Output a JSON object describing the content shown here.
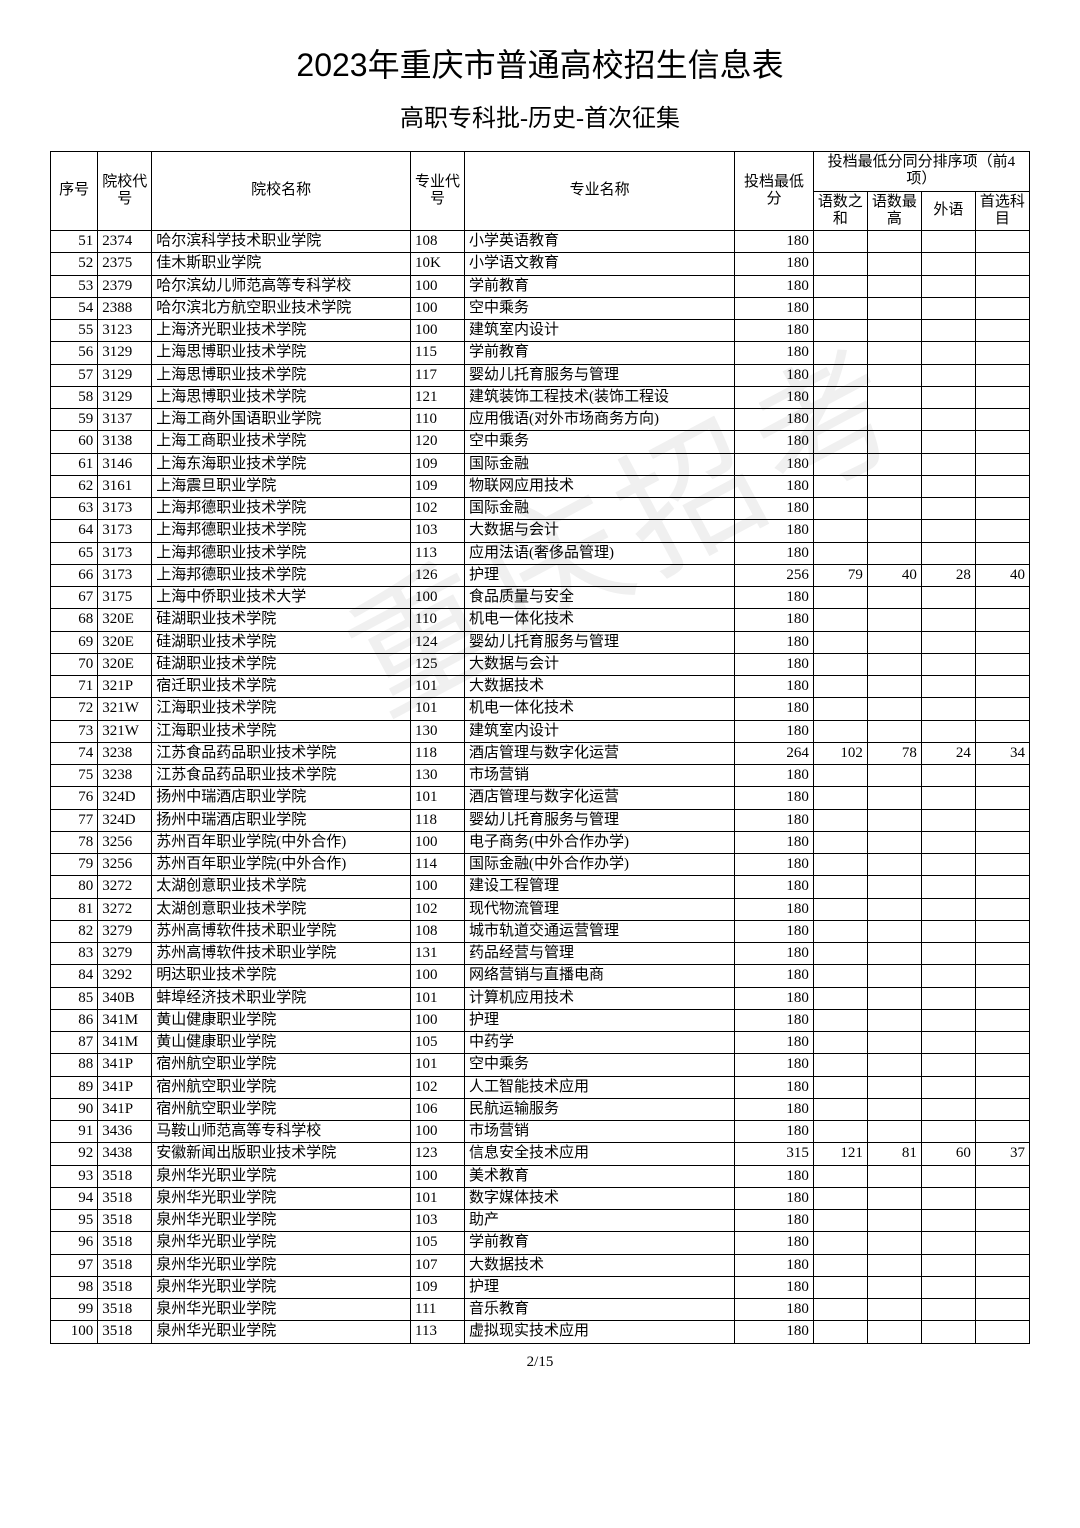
{
  "title": "2023年重庆市普通高校招生信息表",
  "subtitle": "高职专科批-历史-首次征集",
  "watermark": "重庆招考",
  "footer": "2/15",
  "headers": {
    "seq": "序号",
    "school_code": "院校代号",
    "school_name": "院校名称",
    "major_code": "专业代号",
    "major_name": "专业名称",
    "min_score": "投档最低分",
    "tiebreak_group": "投档最低分同分排序项（前4项）",
    "t1": "语数之和",
    "t2": "语数最高",
    "t3": "外语",
    "t4": "首选科目"
  },
  "rows": [
    {
      "seq": 51,
      "sc": "2374",
      "sn": "哈尔滨科学技术职业学院",
      "mc": "108",
      "mn": "小学英语教育",
      "min": 180,
      "s1": "",
      "s2": "",
      "s3": "",
      "s4": ""
    },
    {
      "seq": 52,
      "sc": "2375",
      "sn": "佳木斯职业学院",
      "mc": "10K",
      "mn": "小学语文教育",
      "min": 180,
      "s1": "",
      "s2": "",
      "s3": "",
      "s4": ""
    },
    {
      "seq": 53,
      "sc": "2379",
      "sn": "哈尔滨幼儿师范高等专科学校",
      "mc": "100",
      "mn": "学前教育",
      "min": 180,
      "s1": "",
      "s2": "",
      "s3": "",
      "s4": ""
    },
    {
      "seq": 54,
      "sc": "2388",
      "sn": "哈尔滨北方航空职业技术学院",
      "mc": "100",
      "mn": "空中乘务",
      "min": 180,
      "s1": "",
      "s2": "",
      "s3": "",
      "s4": ""
    },
    {
      "seq": 55,
      "sc": "3123",
      "sn": "上海济光职业技术学院",
      "mc": "100",
      "mn": "建筑室内设计",
      "min": 180,
      "s1": "",
      "s2": "",
      "s3": "",
      "s4": ""
    },
    {
      "seq": 56,
      "sc": "3129",
      "sn": "上海思博职业技术学院",
      "mc": "115",
      "mn": "学前教育",
      "min": 180,
      "s1": "",
      "s2": "",
      "s3": "",
      "s4": ""
    },
    {
      "seq": 57,
      "sc": "3129",
      "sn": "上海思博职业技术学院",
      "mc": "117",
      "mn": "婴幼儿托育服务与管理",
      "min": 180,
      "s1": "",
      "s2": "",
      "s3": "",
      "s4": ""
    },
    {
      "seq": 58,
      "sc": "3129",
      "sn": "上海思博职业技术学院",
      "mc": "121",
      "mn": "建筑装饰工程技术(装饰工程设",
      "min": 180,
      "s1": "",
      "s2": "",
      "s3": "",
      "s4": ""
    },
    {
      "seq": 59,
      "sc": "3137",
      "sn": "上海工商外国语职业学院",
      "mc": "110",
      "mn": "应用俄语(对外市场商务方向)",
      "min": 180,
      "s1": "",
      "s2": "",
      "s3": "",
      "s4": ""
    },
    {
      "seq": 60,
      "sc": "3138",
      "sn": "上海工商职业技术学院",
      "mc": "120",
      "mn": "空中乘务",
      "min": 180,
      "s1": "",
      "s2": "",
      "s3": "",
      "s4": ""
    },
    {
      "seq": 61,
      "sc": "3146",
      "sn": "上海东海职业技术学院",
      "mc": "109",
      "mn": "国际金融",
      "min": 180,
      "s1": "",
      "s2": "",
      "s3": "",
      "s4": ""
    },
    {
      "seq": 62,
      "sc": "3161",
      "sn": "上海震旦职业学院",
      "mc": "109",
      "mn": "物联网应用技术",
      "min": 180,
      "s1": "",
      "s2": "",
      "s3": "",
      "s4": ""
    },
    {
      "seq": 63,
      "sc": "3173",
      "sn": "上海邦德职业技术学院",
      "mc": "102",
      "mn": "国际金融",
      "min": 180,
      "s1": "",
      "s2": "",
      "s3": "",
      "s4": ""
    },
    {
      "seq": 64,
      "sc": "3173",
      "sn": "上海邦德职业技术学院",
      "mc": "103",
      "mn": "大数据与会计",
      "min": 180,
      "s1": "",
      "s2": "",
      "s3": "",
      "s4": ""
    },
    {
      "seq": 65,
      "sc": "3173",
      "sn": "上海邦德职业技术学院",
      "mc": "113",
      "mn": "应用法语(奢侈品管理)",
      "min": 180,
      "s1": "",
      "s2": "",
      "s3": "",
      "s4": ""
    },
    {
      "seq": 66,
      "sc": "3173",
      "sn": "上海邦德职业技术学院",
      "mc": "126",
      "mn": "护理",
      "min": 256,
      "s1": 79,
      "s2": 40,
      "s3": 28,
      "s4": 40
    },
    {
      "seq": 67,
      "sc": "3175",
      "sn": "上海中侨职业技术大学",
      "mc": "100",
      "mn": "食品质量与安全",
      "min": 180,
      "s1": "",
      "s2": "",
      "s3": "",
      "s4": ""
    },
    {
      "seq": 68,
      "sc": "320E",
      "sn": "硅湖职业技术学院",
      "mc": "110",
      "mn": "机电一体化技术",
      "min": 180,
      "s1": "",
      "s2": "",
      "s3": "",
      "s4": ""
    },
    {
      "seq": 69,
      "sc": "320E",
      "sn": "硅湖职业技术学院",
      "mc": "124",
      "mn": "婴幼儿托育服务与管理",
      "min": 180,
      "s1": "",
      "s2": "",
      "s3": "",
      "s4": ""
    },
    {
      "seq": 70,
      "sc": "320E",
      "sn": "硅湖职业技术学院",
      "mc": "125",
      "mn": "大数据与会计",
      "min": 180,
      "s1": "",
      "s2": "",
      "s3": "",
      "s4": ""
    },
    {
      "seq": 71,
      "sc": "321P",
      "sn": "宿迁职业技术学院",
      "mc": "101",
      "mn": "大数据技术",
      "min": 180,
      "s1": "",
      "s2": "",
      "s3": "",
      "s4": ""
    },
    {
      "seq": 72,
      "sc": "321W",
      "sn": "江海职业技术学院",
      "mc": "101",
      "mn": "机电一体化技术",
      "min": 180,
      "s1": "",
      "s2": "",
      "s3": "",
      "s4": ""
    },
    {
      "seq": 73,
      "sc": "321W",
      "sn": "江海职业技术学院",
      "mc": "130",
      "mn": "建筑室内设计",
      "min": 180,
      "s1": "",
      "s2": "",
      "s3": "",
      "s4": ""
    },
    {
      "seq": 74,
      "sc": "3238",
      "sn": "江苏食品药品职业技术学院",
      "mc": "118",
      "mn": "酒店管理与数字化运营",
      "min": 264,
      "s1": 102,
      "s2": 78,
      "s3": 24,
      "s4": 34
    },
    {
      "seq": 75,
      "sc": "3238",
      "sn": "江苏食品药品职业技术学院",
      "mc": "130",
      "mn": "市场营销",
      "min": 180,
      "s1": "",
      "s2": "",
      "s3": "",
      "s4": ""
    },
    {
      "seq": 76,
      "sc": "324D",
      "sn": "扬州中瑞酒店职业学院",
      "mc": "101",
      "mn": "酒店管理与数字化运营",
      "min": 180,
      "s1": "",
      "s2": "",
      "s3": "",
      "s4": ""
    },
    {
      "seq": 77,
      "sc": "324D",
      "sn": "扬州中瑞酒店职业学院",
      "mc": "118",
      "mn": "婴幼儿托育服务与管理",
      "min": 180,
      "s1": "",
      "s2": "",
      "s3": "",
      "s4": ""
    },
    {
      "seq": 78,
      "sc": "3256",
      "sn": "苏州百年职业学院(中外合作)",
      "mc": "100",
      "mn": "电子商务(中外合作办学)",
      "min": 180,
      "s1": "",
      "s2": "",
      "s3": "",
      "s4": ""
    },
    {
      "seq": 79,
      "sc": "3256",
      "sn": "苏州百年职业学院(中外合作)",
      "mc": "114",
      "mn": "国际金融(中外合作办学)",
      "min": 180,
      "s1": "",
      "s2": "",
      "s3": "",
      "s4": ""
    },
    {
      "seq": 80,
      "sc": "3272",
      "sn": "太湖创意职业技术学院",
      "mc": "100",
      "mn": "建设工程管理",
      "min": 180,
      "s1": "",
      "s2": "",
      "s3": "",
      "s4": ""
    },
    {
      "seq": 81,
      "sc": "3272",
      "sn": "太湖创意职业技术学院",
      "mc": "102",
      "mn": "现代物流管理",
      "min": 180,
      "s1": "",
      "s2": "",
      "s3": "",
      "s4": ""
    },
    {
      "seq": 82,
      "sc": "3279",
      "sn": "苏州高博软件技术职业学院",
      "mc": "108",
      "mn": "城市轨道交通运营管理",
      "min": 180,
      "s1": "",
      "s2": "",
      "s3": "",
      "s4": ""
    },
    {
      "seq": 83,
      "sc": "3279",
      "sn": "苏州高博软件技术职业学院",
      "mc": "131",
      "mn": "药品经营与管理",
      "min": 180,
      "s1": "",
      "s2": "",
      "s3": "",
      "s4": ""
    },
    {
      "seq": 84,
      "sc": "3292",
      "sn": "明达职业技术学院",
      "mc": "100",
      "mn": "网络营销与直播电商",
      "min": 180,
      "s1": "",
      "s2": "",
      "s3": "",
      "s4": ""
    },
    {
      "seq": 85,
      "sc": "340B",
      "sn": "蚌埠经济技术职业学院",
      "mc": "101",
      "mn": "计算机应用技术",
      "min": 180,
      "s1": "",
      "s2": "",
      "s3": "",
      "s4": ""
    },
    {
      "seq": 86,
      "sc": "341M",
      "sn": "黄山健康职业学院",
      "mc": "100",
      "mn": "护理",
      "min": 180,
      "s1": "",
      "s2": "",
      "s3": "",
      "s4": ""
    },
    {
      "seq": 87,
      "sc": "341M",
      "sn": "黄山健康职业学院",
      "mc": "105",
      "mn": "中药学",
      "min": 180,
      "s1": "",
      "s2": "",
      "s3": "",
      "s4": ""
    },
    {
      "seq": 88,
      "sc": "341P",
      "sn": "宿州航空职业学院",
      "mc": "101",
      "mn": "空中乘务",
      "min": 180,
      "s1": "",
      "s2": "",
      "s3": "",
      "s4": ""
    },
    {
      "seq": 89,
      "sc": "341P",
      "sn": "宿州航空职业学院",
      "mc": "102",
      "mn": "人工智能技术应用",
      "min": 180,
      "s1": "",
      "s2": "",
      "s3": "",
      "s4": ""
    },
    {
      "seq": 90,
      "sc": "341P",
      "sn": "宿州航空职业学院",
      "mc": "106",
      "mn": "民航运输服务",
      "min": 180,
      "s1": "",
      "s2": "",
      "s3": "",
      "s4": ""
    },
    {
      "seq": 91,
      "sc": "3436",
      "sn": "马鞍山师范高等专科学校",
      "mc": "100",
      "mn": "市场营销",
      "min": 180,
      "s1": "",
      "s2": "",
      "s3": "",
      "s4": ""
    },
    {
      "seq": 92,
      "sc": "3438",
      "sn": "安徽新闻出版职业技术学院",
      "mc": "123",
      "mn": "信息安全技术应用",
      "min": 315,
      "s1": 121,
      "s2": 81,
      "s3": 60,
      "s4": 37
    },
    {
      "seq": 93,
      "sc": "3518",
      "sn": "泉州华光职业学院",
      "mc": "100",
      "mn": "美术教育",
      "min": 180,
      "s1": "",
      "s2": "",
      "s3": "",
      "s4": ""
    },
    {
      "seq": 94,
      "sc": "3518",
      "sn": "泉州华光职业学院",
      "mc": "101",
      "mn": "数字媒体技术",
      "min": 180,
      "s1": "",
      "s2": "",
      "s3": "",
      "s4": ""
    },
    {
      "seq": 95,
      "sc": "3518",
      "sn": "泉州华光职业学院",
      "mc": "103",
      "mn": "助产",
      "min": 180,
      "s1": "",
      "s2": "",
      "s3": "",
      "s4": ""
    },
    {
      "seq": 96,
      "sc": "3518",
      "sn": "泉州华光职业学院",
      "mc": "105",
      "mn": "学前教育",
      "min": 180,
      "s1": "",
      "s2": "",
      "s3": "",
      "s4": ""
    },
    {
      "seq": 97,
      "sc": "3518",
      "sn": "泉州华光职业学院",
      "mc": "107",
      "mn": "大数据技术",
      "min": 180,
      "s1": "",
      "s2": "",
      "s3": "",
      "s4": ""
    },
    {
      "seq": 98,
      "sc": "3518",
      "sn": "泉州华光职业学院",
      "mc": "109",
      "mn": "护理",
      "min": 180,
      "s1": "",
      "s2": "",
      "s3": "",
      "s4": ""
    },
    {
      "seq": 99,
      "sc": "3518",
      "sn": "泉州华光职业学院",
      "mc": "111",
      "mn": "音乐教育",
      "min": 180,
      "s1": "",
      "s2": "",
      "s3": "",
      "s4": ""
    },
    {
      "seq": 100,
      "sc": "3518",
      "sn": "泉州华光职业学院",
      "mc": "113",
      "mn": "虚拟现实技术应用",
      "min": 180,
      "s1": "",
      "s2": "",
      "s3": "",
      "s4": ""
    }
  ]
}
